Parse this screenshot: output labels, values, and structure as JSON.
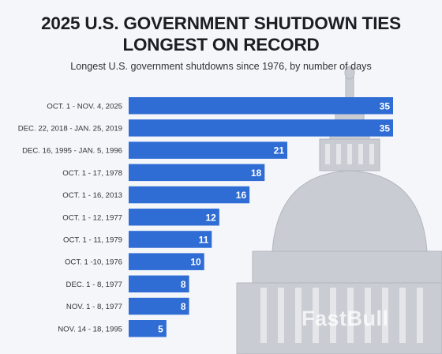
{
  "header": {
    "title_line1": "2025 U.S. GOVERNMENT SHUTDOWN TIES",
    "title_line2": "LONGEST ON RECORD",
    "subtitle": "Longest U.S. government shutdowns since 1976, by number of days"
  },
  "watermark": "FastBull",
  "colors": {
    "bar": "#2f6cd4",
    "value_text": "#ffffff",
    "background": "#f4f6fa"
  },
  "chart_data": {
    "type": "bar",
    "orientation": "horizontal",
    "title": "2025 U.S. GOVERNMENT SHUTDOWN TIES LONGEST ON RECORD",
    "subtitle": "Longest U.S. government shutdowns since 1976, by number of days",
    "categories": [
      "OCT. 1 - NOV. 4, 2025",
      "DEC. 22, 2018 - JAN. 25, 2019",
      "DEC. 16, 1995 - JAN. 5, 1996",
      "OCT. 1 - 17, 1978",
      "OCT. 1 - 16, 2013",
      "OCT. 1 - 12, 1977",
      "OCT. 1 - 11, 1979",
      "OCT. 1 -10, 1976",
      "DEC. 1 - 8, 1977",
      "NOV. 1 - 8, 1977",
      "NOV. 14 - 18, 1995"
    ],
    "values": [
      35,
      35,
      21,
      18,
      16,
      12,
      11,
      10,
      8,
      8,
      5
    ],
    "data_labels": [
      "35",
      "35",
      "21",
      "18",
      "16",
      "12",
      "11",
      "10",
      "8",
      "8",
      "5"
    ],
    "xlabel": "",
    "ylabel": "",
    "xlim": [
      0,
      35
    ],
    "grid": false,
    "legend": "none"
  }
}
